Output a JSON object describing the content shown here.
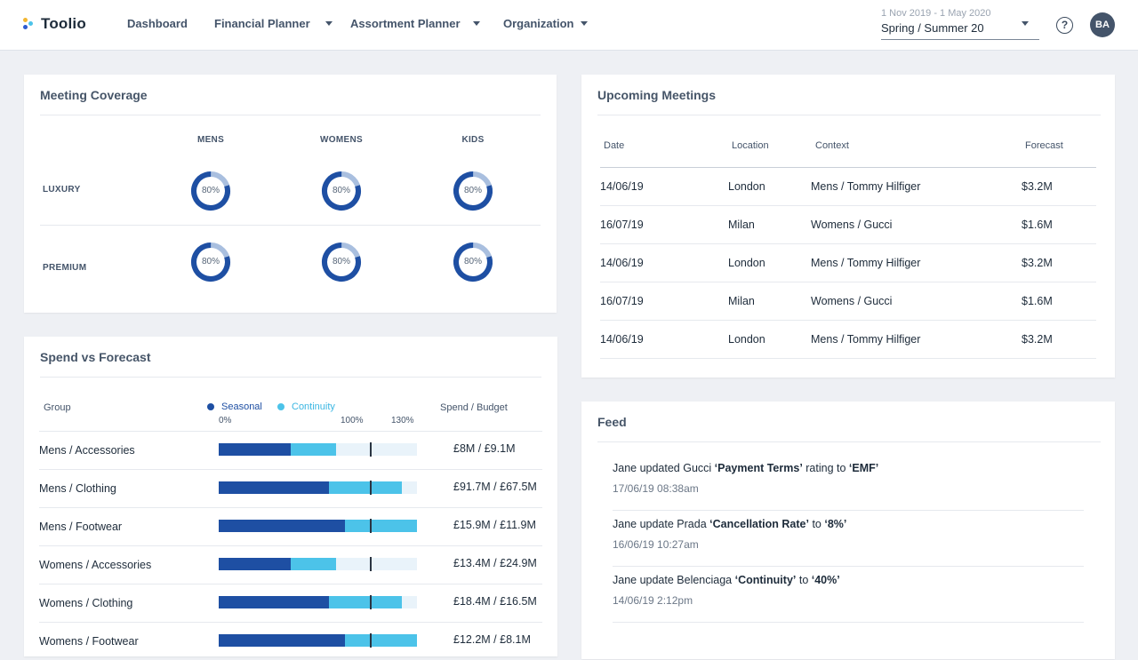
{
  "app": {
    "name": "Toolio",
    "logo_colors": [
      "#f2b632",
      "#2d5bd0",
      "#4cc3e9"
    ]
  },
  "nav": {
    "items": [
      {
        "label": "Dashboard",
        "dropdown": false
      },
      {
        "label": "Financial Planner",
        "dropdown": true
      },
      {
        "label": "Assortment Planner",
        "dropdown": true
      },
      {
        "label": "Organization",
        "dropdown": true
      }
    ]
  },
  "season": {
    "range": "1 Nov 2019 - 1 May 2020",
    "value": "Spring / Summer 20"
  },
  "help": {
    "glyph": "?",
    "icon": "help-circle-icon"
  },
  "user": {
    "initials": "BA"
  },
  "coverage": {
    "title": "Meeting Coverage",
    "columns": [
      "MENS",
      "WOMENS",
      "KIDS"
    ],
    "rows": [
      {
        "label": "LUXURY",
        "values": [
          80,
          80,
          80
        ]
      },
      {
        "label": "PREMIUM",
        "values": [
          80,
          80,
          80
        ]
      }
    ],
    "value_labels": [
      [
        "80%",
        "80%",
        "80%"
      ],
      [
        "80%",
        "80%",
        "80%"
      ]
    ],
    "colors": {
      "filled": "#1e4fa3",
      "remaining": "#a9bfdf"
    }
  },
  "spend": {
    "title": "Spend vs Forecast",
    "headers": {
      "group": "Group",
      "spend_budget": "Spend / Budget"
    },
    "legend": {
      "seasonal": {
        "label": "Seasonal",
        "color": "#1e4fa3"
      },
      "continuity": {
        "label": "Continuity",
        "color": "#4cc3e9"
      }
    },
    "scale": {
      "min": "0%",
      "mid": "100%",
      "max": "130%"
    },
    "rows": [
      {
        "group": "Mens / Accessories",
        "seasonal": 47,
        "continuity": 30,
        "value": "£8M / £9.1M"
      },
      {
        "group": "Mens / Clothing",
        "seasonal": 72,
        "continuity": 48,
        "value": "£91.7M / £67.5M"
      },
      {
        "group": "Mens / Footwear",
        "seasonal": 83,
        "continuity": 47,
        "value": "£15.9M / £11.9M"
      },
      {
        "group": "Womens / Accessories",
        "seasonal": 47,
        "continuity": 30,
        "value": "£13.4M / £24.9M"
      },
      {
        "group": "Womens / Clothing",
        "seasonal": 72,
        "continuity": 48,
        "value": "£18.4M / £16.5M"
      },
      {
        "group": "Womens / Footwear",
        "seasonal": 83,
        "continuity": 47,
        "value": "£12.2M / £8.1M"
      }
    ]
  },
  "meetings": {
    "title": "Upcoming Meetings",
    "headers": [
      "Date",
      "Location",
      "Context",
      "Forecast"
    ],
    "rows": [
      [
        "14/06/19",
        "London",
        "Mens / Tommy Hilfiger",
        "$3.2M"
      ],
      [
        "16/07/19",
        "Milan",
        "Womens / Gucci",
        "$1.6M"
      ],
      [
        "14/06/19",
        "London",
        "Mens / Tommy Hilfiger",
        "$3.2M"
      ],
      [
        "16/07/19",
        "Milan",
        "Womens / Gucci",
        "$1.6M"
      ],
      [
        "14/06/19",
        "London",
        "Mens / Tommy Hilfiger",
        "$3.2M"
      ]
    ]
  },
  "feed": {
    "title": "Feed",
    "items": [
      {
        "pre": "Jane updated Gucci ",
        "b1": "‘Payment Terms’",
        "mid": " rating to ",
        "b2": "‘EMF’",
        "time": "17/06/19 08:38am"
      },
      {
        "pre": "Jane update Prada ",
        "b1": "‘Cancellation Rate’",
        "mid": " to ",
        "b2": "‘8%’",
        "time": "16/06/19 10:27am"
      },
      {
        "pre": "Jane update Belenciaga ",
        "b1": "‘Continuity’",
        "mid": " to ",
        "b2": "‘40%’",
        "time": "14/06/19 2:12pm"
      }
    ]
  }
}
